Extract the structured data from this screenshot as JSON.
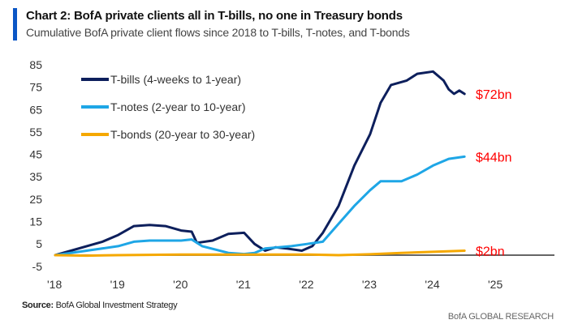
{
  "header": {
    "title": "Chart 2: BofA private clients all in T-bills, no one in Treasury bonds",
    "subtitle": "Cumulative BofA private client flows since 2018 to T-bills, T-notes, and T-bonds"
  },
  "footer": {
    "source_label": "Source:",
    "source_text": " BofA Global Investment Strategy",
    "brand": "BofA GLOBAL RESEARCH"
  },
  "colors": {
    "accent": "#0b56c6",
    "tbills": "#0d1f5c",
    "tnotes": "#1ea6e6",
    "tbonds": "#f5a800",
    "end_label": "#ff0000",
    "zero_line": "#666666"
  },
  "chart_data": {
    "type": "line",
    "title": "Chart 2: BofA private clients all in T-bills, no one in Treasury bonds",
    "subtitle": "Cumulative BofA private client flows since 2018 to T-bills, T-notes, and T-bonds",
    "ylim": [
      -5,
      85
    ],
    "yticks": [
      85,
      75,
      65,
      55,
      45,
      35,
      25,
      15,
      5,
      -5
    ],
    "xlim": [
      "2018-01",
      "2025-12"
    ],
    "xticks": [
      {
        "date": "2018-01",
        "label": "'18"
      },
      {
        "date": "2019-01",
        "label": "'19"
      },
      {
        "date": "2020-01",
        "label": "'20"
      },
      {
        "date": "2021-01",
        "label": "'21"
      },
      {
        "date": "2022-01",
        "label": "'22"
      },
      {
        "date": "2023-01",
        "label": "'23"
      },
      {
        "date": "2024-01",
        "label": "'24"
      },
      {
        "date": "2025-01",
        "label": "'25"
      }
    ],
    "grid": false,
    "legend_position": "top-left",
    "series": [
      {
        "name": "T-bills (4-weeks to 1-year)",
        "color": "#0d1f5c",
        "end_label": "$72bn",
        "x": [
          "2018-01",
          "2018-04",
          "2018-07",
          "2018-10",
          "2019-01",
          "2019-04",
          "2019-07",
          "2019-10",
          "2020-01",
          "2020-03",
          "2020-04",
          "2020-07",
          "2020-10",
          "2021-01",
          "2021-03",
          "2021-05",
          "2021-07",
          "2021-09",
          "2021-12",
          "2022-02",
          "2022-04",
          "2022-07",
          "2022-10",
          "2023-01",
          "2023-03",
          "2023-05",
          "2023-08",
          "2023-10",
          "2024-01",
          "2024-03",
          "2024-04",
          "2024-05",
          "2024-06",
          "2024-07"
        ],
        "y": [
          0,
          2,
          4,
          6,
          9,
          13,
          13.5,
          13,
          11,
          10.5,
          5.5,
          6.5,
          9.5,
          10,
          5,
          2,
          3.5,
          3,
          2,
          4,
          10,
          22,
          40,
          54,
          68,
          76,
          78,
          81,
          82,
          78,
          74,
          72,
          73.5,
          72
        ]
      },
      {
        "name": "T-notes (2-year to 10-year)",
        "color": "#1ea6e6",
        "end_label": "$44bn",
        "x": [
          "2018-01",
          "2018-07",
          "2019-01",
          "2019-04",
          "2019-07",
          "2020-01",
          "2020-03",
          "2020-05",
          "2020-10",
          "2021-01",
          "2021-03",
          "2021-05",
          "2021-10",
          "2022-01",
          "2022-04",
          "2022-07",
          "2022-10",
          "2023-01",
          "2023-03",
          "2023-07",
          "2023-10",
          "2024-01",
          "2024-04",
          "2024-07"
        ],
        "y": [
          0,
          2,
          4,
          6,
          6.5,
          6.5,
          7,
          4,
          1,
          0.5,
          1,
          3,
          4,
          5,
          6,
          14,
          22,
          29,
          33,
          33,
          36,
          40,
          43,
          44
        ]
      },
      {
        "name": "T-bonds (20-year to 30-year)",
        "color": "#f5a800",
        "end_label": "$2bn",
        "x": [
          "2018-01",
          "2018-07",
          "2019-01",
          "2020-01",
          "2021-01",
          "2022-01",
          "2022-07",
          "2023-01",
          "2023-07",
          "2024-01",
          "2024-07"
        ],
        "y": [
          0,
          -0.2,
          0,
          0.3,
          0.3,
          0.3,
          0,
          0.4,
          1,
          1.5,
          2
        ]
      }
    ]
  }
}
